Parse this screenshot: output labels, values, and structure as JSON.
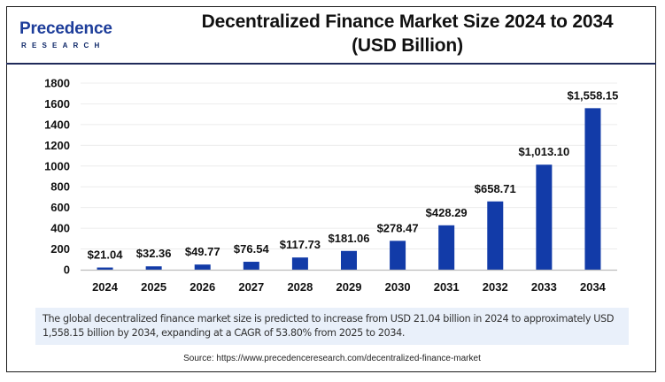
{
  "logo": {
    "wordmark": "Precedence",
    "subtitle": "RESEARCH"
  },
  "title": {
    "line1": "Decentralized Finance Market Size 2024 to 2034",
    "line2": "(USD Billion)"
  },
  "caption": "The global decentralized finance market size is predicted to increase from USD 21.04 billion in 2024 to approximately USD 1,558.15 billion by 2034, expanding at a CAGR of 53.80% from 2025 to 2034.",
  "source": "Source: https://www.precedenceresearch.com/decentralized-finance-market",
  "colors": {
    "bar": "#123ba8",
    "grid": "#ececec",
    "axis": "#bdbdbd",
    "caption_bg": "#e9f0fa"
  },
  "chart_data": {
    "type": "bar",
    "title": "Decentralized Finance Market Size 2024 to 2034 (USD Billion)",
    "xlabel": "",
    "ylabel": "",
    "categories": [
      "2024",
      "2025",
      "2026",
      "2027",
      "2028",
      "2029",
      "2030",
      "2031",
      "2032",
      "2033",
      "2034"
    ],
    "values": [
      21.04,
      32.36,
      49.77,
      76.54,
      117.73,
      181.06,
      278.47,
      428.29,
      658.71,
      1013.1,
      1558.15
    ],
    "data_labels": [
      "$21.04",
      "$32.36",
      "$49.77",
      "$76.54",
      "$117.73",
      "$181.06",
      "$278.47",
      "$428.29",
      "$658.71",
      "$1,013.10",
      "$1,558.15"
    ],
    "yticks": [
      0,
      200,
      400,
      600,
      800,
      1000,
      1200,
      1400,
      1600,
      1800
    ],
    "ylim": [
      0,
      1800
    ],
    "grid": true,
    "legend": "none"
  }
}
